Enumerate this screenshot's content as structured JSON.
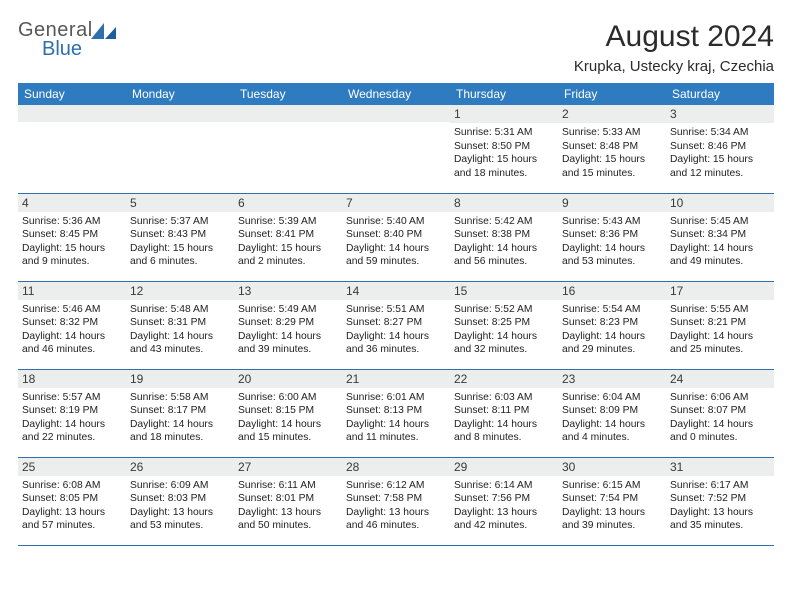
{
  "logo": {
    "line1": "General",
    "line2": "Blue"
  },
  "header": {
    "month_title": "August 2024",
    "location": "Krupka, Ustecky kraj, Czechia"
  },
  "colors": {
    "header_bg": "#2f7bbf",
    "header_fg": "#ffffff",
    "rule": "#2f6fae",
    "daynum_bg": "#eceded",
    "text": "#222222",
    "logo_gray": "#585858",
    "logo_blue": "#2f6fae"
  },
  "day_names": [
    "Sunday",
    "Monday",
    "Tuesday",
    "Wednesday",
    "Thursday",
    "Friday",
    "Saturday"
  ],
  "weeks": [
    [
      {
        "n": "",
        "sr": "",
        "ss": "",
        "dl": ""
      },
      {
        "n": "",
        "sr": "",
        "ss": "",
        "dl": ""
      },
      {
        "n": "",
        "sr": "",
        "ss": "",
        "dl": ""
      },
      {
        "n": "",
        "sr": "",
        "ss": "",
        "dl": ""
      },
      {
        "n": "1",
        "sr": "Sunrise: 5:31 AM",
        "ss": "Sunset: 8:50 PM",
        "dl": "Daylight: 15 hours and 18 minutes."
      },
      {
        "n": "2",
        "sr": "Sunrise: 5:33 AM",
        "ss": "Sunset: 8:48 PM",
        "dl": "Daylight: 15 hours and 15 minutes."
      },
      {
        "n": "3",
        "sr": "Sunrise: 5:34 AM",
        "ss": "Sunset: 8:46 PM",
        "dl": "Daylight: 15 hours and 12 minutes."
      }
    ],
    [
      {
        "n": "4",
        "sr": "Sunrise: 5:36 AM",
        "ss": "Sunset: 8:45 PM",
        "dl": "Daylight: 15 hours and 9 minutes."
      },
      {
        "n": "5",
        "sr": "Sunrise: 5:37 AM",
        "ss": "Sunset: 8:43 PM",
        "dl": "Daylight: 15 hours and 6 minutes."
      },
      {
        "n": "6",
        "sr": "Sunrise: 5:39 AM",
        "ss": "Sunset: 8:41 PM",
        "dl": "Daylight: 15 hours and 2 minutes."
      },
      {
        "n": "7",
        "sr": "Sunrise: 5:40 AM",
        "ss": "Sunset: 8:40 PM",
        "dl": "Daylight: 14 hours and 59 minutes."
      },
      {
        "n": "8",
        "sr": "Sunrise: 5:42 AM",
        "ss": "Sunset: 8:38 PM",
        "dl": "Daylight: 14 hours and 56 minutes."
      },
      {
        "n": "9",
        "sr": "Sunrise: 5:43 AM",
        "ss": "Sunset: 8:36 PM",
        "dl": "Daylight: 14 hours and 53 minutes."
      },
      {
        "n": "10",
        "sr": "Sunrise: 5:45 AM",
        "ss": "Sunset: 8:34 PM",
        "dl": "Daylight: 14 hours and 49 minutes."
      }
    ],
    [
      {
        "n": "11",
        "sr": "Sunrise: 5:46 AM",
        "ss": "Sunset: 8:32 PM",
        "dl": "Daylight: 14 hours and 46 minutes."
      },
      {
        "n": "12",
        "sr": "Sunrise: 5:48 AM",
        "ss": "Sunset: 8:31 PM",
        "dl": "Daylight: 14 hours and 43 minutes."
      },
      {
        "n": "13",
        "sr": "Sunrise: 5:49 AM",
        "ss": "Sunset: 8:29 PM",
        "dl": "Daylight: 14 hours and 39 minutes."
      },
      {
        "n": "14",
        "sr": "Sunrise: 5:51 AM",
        "ss": "Sunset: 8:27 PM",
        "dl": "Daylight: 14 hours and 36 minutes."
      },
      {
        "n": "15",
        "sr": "Sunrise: 5:52 AM",
        "ss": "Sunset: 8:25 PM",
        "dl": "Daylight: 14 hours and 32 minutes."
      },
      {
        "n": "16",
        "sr": "Sunrise: 5:54 AM",
        "ss": "Sunset: 8:23 PM",
        "dl": "Daylight: 14 hours and 29 minutes."
      },
      {
        "n": "17",
        "sr": "Sunrise: 5:55 AM",
        "ss": "Sunset: 8:21 PM",
        "dl": "Daylight: 14 hours and 25 minutes."
      }
    ],
    [
      {
        "n": "18",
        "sr": "Sunrise: 5:57 AM",
        "ss": "Sunset: 8:19 PM",
        "dl": "Daylight: 14 hours and 22 minutes."
      },
      {
        "n": "19",
        "sr": "Sunrise: 5:58 AM",
        "ss": "Sunset: 8:17 PM",
        "dl": "Daylight: 14 hours and 18 minutes."
      },
      {
        "n": "20",
        "sr": "Sunrise: 6:00 AM",
        "ss": "Sunset: 8:15 PM",
        "dl": "Daylight: 14 hours and 15 minutes."
      },
      {
        "n": "21",
        "sr": "Sunrise: 6:01 AM",
        "ss": "Sunset: 8:13 PM",
        "dl": "Daylight: 14 hours and 11 minutes."
      },
      {
        "n": "22",
        "sr": "Sunrise: 6:03 AM",
        "ss": "Sunset: 8:11 PM",
        "dl": "Daylight: 14 hours and 8 minutes."
      },
      {
        "n": "23",
        "sr": "Sunrise: 6:04 AM",
        "ss": "Sunset: 8:09 PM",
        "dl": "Daylight: 14 hours and 4 minutes."
      },
      {
        "n": "24",
        "sr": "Sunrise: 6:06 AM",
        "ss": "Sunset: 8:07 PM",
        "dl": "Daylight: 14 hours and 0 minutes."
      }
    ],
    [
      {
        "n": "25",
        "sr": "Sunrise: 6:08 AM",
        "ss": "Sunset: 8:05 PM",
        "dl": "Daylight: 13 hours and 57 minutes."
      },
      {
        "n": "26",
        "sr": "Sunrise: 6:09 AM",
        "ss": "Sunset: 8:03 PM",
        "dl": "Daylight: 13 hours and 53 minutes."
      },
      {
        "n": "27",
        "sr": "Sunrise: 6:11 AM",
        "ss": "Sunset: 8:01 PM",
        "dl": "Daylight: 13 hours and 50 minutes."
      },
      {
        "n": "28",
        "sr": "Sunrise: 6:12 AM",
        "ss": "Sunset: 7:58 PM",
        "dl": "Daylight: 13 hours and 46 minutes."
      },
      {
        "n": "29",
        "sr": "Sunrise: 6:14 AM",
        "ss": "Sunset: 7:56 PM",
        "dl": "Daylight: 13 hours and 42 minutes."
      },
      {
        "n": "30",
        "sr": "Sunrise: 6:15 AM",
        "ss": "Sunset: 7:54 PM",
        "dl": "Daylight: 13 hours and 39 minutes."
      },
      {
        "n": "31",
        "sr": "Sunrise: 6:17 AM",
        "ss": "Sunset: 7:52 PM",
        "dl": "Daylight: 13 hours and 35 minutes."
      }
    ]
  ]
}
